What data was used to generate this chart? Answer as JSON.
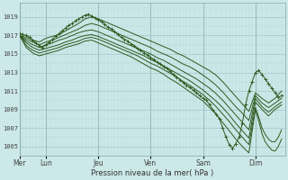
{
  "xlabel": "Pression niveau de la mer( hPa )",
  "bg_color": "#cce8e8",
  "grid_minor_color": "#b8d8d8",
  "grid_major_color": "#a0c8c8",
  "line_color": "#2d5a1e",
  "ylim": [
    1004,
    1020.5
  ],
  "yticks": [
    1005,
    1007,
    1009,
    1011,
    1013,
    1015,
    1017,
    1019
  ],
  "day_labels": [
    "Mer",
    "Lun",
    "Jeu",
    "Ven",
    "Sam",
    "Dim"
  ],
  "day_positions": [
    0,
    24,
    72,
    120,
    168,
    216
  ],
  "total_hours": 243,
  "series": [
    {
      "x": [
        0,
        3,
        6,
        9,
        12,
        15,
        18,
        21,
        24,
        27,
        30,
        33,
        36,
        39,
        42,
        45,
        48,
        51,
        54,
        57,
        60,
        63,
        66,
        69,
        72,
        75,
        78,
        81,
        84,
        87,
        90,
        93,
        96,
        99,
        102,
        105,
        108,
        111,
        114,
        117,
        120,
        123,
        126,
        129,
        132,
        135,
        138,
        141,
        144,
        147,
        150,
        153,
        156,
        159,
        162,
        165,
        168,
        171,
        174,
        177,
        180,
        183,
        186,
        189,
        192,
        195,
        198,
        201,
        204,
        207,
        210,
        213,
        216,
        219,
        222,
        225,
        228,
        231,
        234,
        237,
        240
      ],
      "y": [
        1017.2,
        1017.1,
        1017.0,
        1016.8,
        1016.5,
        1016.2,
        1015.9,
        1015.7,
        1016.0,
        1016.3,
        1016.6,
        1016.9,
        1017.2,
        1017.5,
        1017.8,
        1018.1,
        1018.3,
        1018.6,
        1018.8,
        1019.0,
        1019.2,
        1019.3,
        1019.1,
        1018.9,
        1018.7,
        1018.5,
        1018.2,
        1017.9,
        1017.7,
        1017.4,
        1017.1,
        1016.8,
        1016.6,
        1016.4,
        1016.1,
        1015.9,
        1015.6,
        1015.4,
        1015.1,
        1014.9,
        1014.6,
        1014.4,
        1014.1,
        1013.9,
        1013.6,
        1013.4,
        1013.1,
        1012.8,
        1012.5,
        1012.2,
        1011.9,
        1011.6,
        1011.4,
        1011.1,
        1010.8,
        1010.5,
        1010.2,
        1010.0,
        1009.5,
        1009.0,
        1008.5,
        1008.0,
        1007.0,
        1006.0,
        1005.2,
        1004.8,
        1005.3,
        1006.0,
        1007.5,
        1009.5,
        1011.0,
        1012.0,
        1013.0,
        1013.2,
        1012.8,
        1012.3,
        1011.8,
        1011.3,
        1010.8,
        1010.3,
        1010.5
      ],
      "marker": "+"
    },
    {
      "x": [
        0,
        6,
        12,
        18,
        24,
        30,
        36,
        42,
        48,
        54,
        60,
        66,
        72,
        78,
        84,
        90,
        96,
        102,
        108,
        114,
        120,
        126,
        132,
        138,
        144,
        150,
        156,
        162,
        168,
        174,
        180,
        186,
        192,
        198,
        204,
        210,
        216,
        222,
        228,
        234,
        240
      ],
      "y": [
        1017.0,
        1016.8,
        1016.5,
        1016.3,
        1016.7,
        1016.9,
        1017.1,
        1017.5,
        1017.9,
        1018.3,
        1018.8,
        1019.0,
        1018.8,
        1018.5,
        1018.2,
        1017.9,
        1017.6,
        1017.3,
        1017.0,
        1016.7,
        1016.4,
        1016.1,
        1015.8,
        1015.5,
        1015.1,
        1014.8,
        1014.4,
        1014.0,
        1013.6,
        1013.2,
        1012.7,
        1012.0,
        1011.2,
        1010.4,
        1009.6,
        1008.8,
        1010.8,
        1010.2,
        1009.7,
        1010.2,
        1011.0
      ],
      "marker": null
    },
    {
      "x": [
        0,
        6,
        12,
        18,
        24,
        30,
        36,
        42,
        48,
        54,
        60,
        66,
        72,
        78,
        84,
        90,
        96,
        102,
        108,
        114,
        120,
        126,
        132,
        138,
        144,
        150,
        156,
        162,
        168,
        174,
        180,
        186,
        192,
        198,
        204,
        210,
        216,
        222,
        228,
        234,
        240
      ],
      "y": [
        1017.0,
        1016.6,
        1016.3,
        1016.0,
        1016.3,
        1016.5,
        1016.8,
        1017.1,
        1017.4,
        1017.7,
        1018.1,
        1018.3,
        1018.1,
        1017.8,
        1017.5,
        1017.2,
        1016.9,
        1016.6,
        1016.3,
        1016.0,
        1015.7,
        1015.3,
        1015.0,
        1014.7,
        1014.3,
        1013.9,
        1013.6,
        1013.2,
        1012.7,
        1012.2,
        1011.6,
        1010.9,
        1010.1,
        1009.3,
        1008.6,
        1007.8,
        1010.5,
        1009.7,
        1009.2,
        1009.7,
        1010.2
      ],
      "marker": null
    },
    {
      "x": [
        0,
        6,
        12,
        18,
        24,
        30,
        36,
        42,
        48,
        54,
        60,
        66,
        72,
        78,
        84,
        90,
        96,
        102,
        108,
        114,
        120,
        126,
        132,
        138,
        144,
        150,
        156,
        162,
        168,
        174,
        180,
        186,
        192,
        198,
        204,
        210,
        216,
        222,
        228,
        234,
        240
      ],
      "y": [
        1017.0,
        1016.4,
        1016.0,
        1015.7,
        1016.0,
        1016.2,
        1016.5,
        1016.7,
        1017.0,
        1017.3,
        1017.5,
        1017.6,
        1017.4,
        1017.1,
        1016.8,
        1016.5,
        1016.2,
        1015.9,
        1015.6,
        1015.3,
        1015.0,
        1014.6,
        1014.3,
        1013.9,
        1013.5,
        1013.1,
        1012.7,
        1012.3,
        1011.8,
        1011.3,
        1010.7,
        1010.0,
        1009.2,
        1008.4,
        1007.6,
        1006.8,
        1010.2,
        1009.3,
        1008.7,
        1009.3,
        1009.8
      ],
      "marker": null
    },
    {
      "x": [
        0,
        6,
        12,
        18,
        24,
        30,
        36,
        42,
        48,
        54,
        60,
        66,
        72,
        78,
        84,
        90,
        96,
        102,
        108,
        114,
        120,
        126,
        132,
        138,
        144,
        150,
        156,
        162,
        168,
        174,
        180,
        186,
        192,
        198,
        204,
        210,
        216,
        222,
        228,
        234,
        240
      ],
      "y": [
        1017.0,
        1016.2,
        1015.7,
        1015.4,
        1015.6,
        1015.8,
        1016.0,
        1016.3,
        1016.5,
        1016.8,
        1017.0,
        1017.1,
        1016.9,
        1016.6,
        1016.3,
        1016.0,
        1015.7,
        1015.4,
        1015.1,
        1014.8,
        1014.4,
        1014.1,
        1013.7,
        1013.3,
        1012.9,
        1012.5,
        1012.1,
        1011.6,
        1011.1,
        1010.5,
        1009.9,
        1009.2,
        1008.4,
        1007.5,
        1006.7,
        1005.9,
        1009.8,
        1009.0,
        1008.3,
        1009.0,
        1009.5
      ],
      "marker": null
    },
    {
      "x": [
        0,
        6,
        12,
        18,
        24,
        30,
        36,
        42,
        48,
        54,
        60,
        66,
        72,
        78,
        84,
        90,
        96,
        102,
        108,
        114,
        120,
        126,
        132,
        138,
        144,
        150,
        156,
        162,
        168,
        174,
        180,
        186,
        192,
        198,
        204,
        210,
        216,
        219,
        222,
        225,
        228,
        231,
        234,
        237,
        240
      ],
      "y": [
        1017.0,
        1015.9,
        1015.4,
        1015.1,
        1015.3,
        1015.5,
        1015.7,
        1016.0,
        1016.2,
        1016.4,
        1016.7,
        1016.8,
        1016.6,
        1016.3,
        1016.0,
        1015.7,
        1015.4,
        1015.1,
        1014.8,
        1014.4,
        1014.0,
        1013.7,
        1013.3,
        1012.9,
        1012.5,
        1012.0,
        1011.6,
        1011.1,
        1010.6,
        1010.0,
        1009.3,
        1008.5,
        1007.7,
        1006.8,
        1006.0,
        1005.2,
        1009.2,
        1008.2,
        1007.0,
        1006.3,
        1005.8,
        1005.5,
        1005.5,
        1006.0,
        1006.8
      ],
      "marker": null
    },
    {
      "x": [
        0,
        6,
        12,
        18,
        24,
        30,
        36,
        42,
        48,
        54,
        60,
        66,
        72,
        78,
        84,
        90,
        96,
        102,
        108,
        114,
        120,
        126,
        132,
        138,
        144,
        150,
        156,
        162,
        168,
        174,
        180,
        186,
        192,
        198,
        204,
        210,
        216,
        219,
        222,
        225,
        228,
        231,
        234,
        237,
        240
      ],
      "y": [
        1017.0,
        1015.7,
        1015.1,
        1014.8,
        1015.0,
        1015.2,
        1015.4,
        1015.7,
        1015.9,
        1016.1,
        1016.4,
        1016.5,
        1016.2,
        1015.9,
        1015.6,
        1015.3,
        1015.0,
        1014.7,
        1014.3,
        1013.9,
        1013.5,
        1013.2,
        1012.8,
        1012.3,
        1011.9,
        1011.4,
        1010.9,
        1010.4,
        1009.9,
        1009.2,
        1008.5,
        1007.6,
        1006.7,
        1005.8,
        1005.0,
        1004.3,
        1009.0,
        1007.8,
        1006.4,
        1005.5,
        1005.0,
        1004.6,
        1004.5,
        1005.0,
        1005.8
      ],
      "marker": null
    }
  ]
}
